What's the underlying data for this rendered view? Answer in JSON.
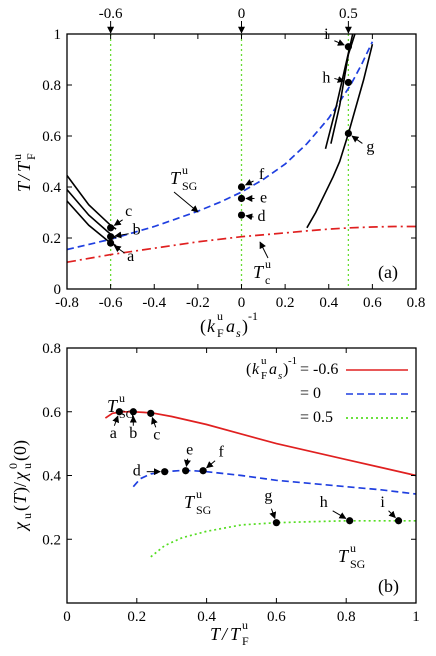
{
  "chart_data": [
    {
      "panel": "(a)",
      "type": "line",
      "xlabel": "(k_F^u a_s)^-1",
      "ylabel": "T/T_F^u",
      "xlim": [
        -0.8,
        0.8
      ],
      "ylim": [
        0,
        1
      ],
      "xticks": [
        "-0.8",
        "-0.6",
        "-0.4",
        "-0.2",
        "0",
        "0.2",
        "0.4",
        "0.6",
        "0.8"
      ],
      "yticks": [
        "0",
        "0.2",
        "0.4",
        "0.6",
        "0.8",
        "1"
      ],
      "top_markers": [
        {
          "x": -0.6,
          "label": "-0.6"
        },
        {
          "x": 0,
          "label": "0"
        },
        {
          "x": 0.49,
          "label": "0.5"
        }
      ],
      "series": [
        {
          "name": "T_SG^u",
          "style": "dashed",
          "color": "#1f3fe0",
          "x": [
            -0.8,
            -0.7,
            -0.6,
            -0.5,
            -0.4,
            -0.3,
            -0.2,
            -0.1,
            0.0,
            0.1,
            0.2,
            0.3,
            0.4,
            0.5,
            0.55,
            0.6
          ],
          "y": [
            0.155,
            0.175,
            0.195,
            0.22,
            0.245,
            0.275,
            0.305,
            0.34,
            0.38,
            0.43,
            0.49,
            0.57,
            0.67,
            0.8,
            0.88,
            0.97
          ]
        },
        {
          "name": "T_c^u",
          "style": "dash-dot",
          "color": "#e02020",
          "x": [
            -0.8,
            -0.6,
            -0.4,
            -0.2,
            0.0,
            0.2,
            0.3,
            0.4,
            0.5,
            0.6,
            0.7,
            0.8
          ],
          "y": [
            0.105,
            0.135,
            0.16,
            0.185,
            0.205,
            0.22,
            0.228,
            0.235,
            0.24,
            0.243,
            0.245,
            0.245
          ]
        },
        {
          "name": "",
          "style": "solid",
          "color": "#000000",
          "x": [
            -0.8,
            -0.7,
            -0.6,
            -0.575
          ],
          "y": [
            0.445,
            0.33,
            0.25,
            0.235
          ]
        },
        {
          "name": "",
          "style": "solid",
          "color": "#000000",
          "x": [
            -0.8,
            -0.7,
            -0.6,
            -0.575
          ],
          "y": [
            0.39,
            0.29,
            0.215,
            0.2
          ]
        },
        {
          "name": "",
          "style": "solid",
          "color": "#000000",
          "x": [
            -0.8,
            -0.7,
            -0.6,
            -0.575
          ],
          "y": [
            0.345,
            0.25,
            0.18,
            0.17
          ]
        },
        {
          "name": "",
          "style": "solid",
          "color": "#000000",
          "x": [
            0.3,
            0.34,
            0.38,
            0.42,
            0.45,
            0.49,
            0.52,
            0.56,
            0.6
          ],
          "y": [
            0.24,
            0.3,
            0.37,
            0.44,
            0.5,
            0.61,
            0.7,
            0.82,
            0.96
          ]
        },
        {
          "name": "",
          "style": "solid",
          "color": "#000000",
          "x": [
            0.385,
            0.43,
            0.47,
            0.51
          ],
          "y": [
            0.55,
            0.7,
            0.85,
            1.0
          ]
        },
        {
          "name": "",
          "style": "solid",
          "color": "#000000",
          "x": [
            0.41,
            0.45,
            0.49,
            0.52
          ],
          "y": [
            0.57,
            0.72,
            0.92,
            1.0
          ]
        }
      ],
      "points": [
        {
          "label": "a",
          "x": -0.6,
          "y": 0.18
        },
        {
          "label": "b",
          "x": -0.6,
          "y": 0.205
        },
        {
          "label": "c",
          "x": -0.6,
          "y": 0.24
        },
        {
          "label": "d",
          "x": 0.0,
          "y": 0.29
        },
        {
          "label": "e",
          "x": 0.0,
          "y": 0.355
        },
        {
          "label": "f",
          "x": 0.0,
          "y": 0.4
        },
        {
          "label": "g",
          "x": 0.49,
          "y": 0.61
        },
        {
          "label": "h",
          "x": 0.49,
          "y": 0.81
        },
        {
          "label": "i",
          "x": 0.49,
          "y": 0.95
        }
      ],
      "curve_labels": [
        "T_SG^u",
        "T_c^u"
      ]
    },
    {
      "panel": "(b)",
      "type": "line",
      "xlabel": "T/T_F^u",
      "ylabel": "χ_u(T)/χ_u^0(0)",
      "xlim": [
        0,
        1
      ],
      "ylim": [
        0,
        0.8
      ],
      "xticks": [
        "0",
        "0.2",
        "0.4",
        "0.6",
        "0.8",
        "1"
      ],
      "yticks": [
        "0.2",
        "0.4",
        "0.6",
        "0.8"
      ],
      "legend_position": "top-right",
      "legend": [
        "(k_F^u a_s)^-1 = -0.6",
        "= 0",
        "= 0.5"
      ],
      "series": [
        {
          "name": "(k_F^u a_s)^-1 = -0.6",
          "style": "solid",
          "color": "#e02020",
          "x": [
            0.11,
            0.13,
            0.16,
            0.19,
            0.22,
            0.25,
            0.3,
            0.4,
            0.5,
            0.6,
            0.7,
            0.8,
            0.9,
            1.0
          ],
          "y": [
            0.58,
            0.595,
            0.6,
            0.6,
            0.598,
            0.595,
            0.585,
            0.56,
            0.53,
            0.5,
            0.475,
            0.45,
            0.425,
            0.4
          ]
        },
        {
          "name": "= 0",
          "style": "dashed",
          "color": "#1f3fe0",
          "x": [
            0.19,
            0.21,
            0.24,
            0.28,
            0.32,
            0.36,
            0.4,
            0.5,
            0.6,
            0.7,
            0.8,
            0.9,
            1.0
          ],
          "y": [
            0.365,
            0.39,
            0.405,
            0.412,
            0.415,
            0.415,
            0.412,
            0.4,
            0.385,
            0.375,
            0.365,
            0.355,
            0.342
          ]
        },
        {
          "name": "= 0.5",
          "style": "dotted",
          "color": "#55dd22",
          "x": [
            0.24,
            0.28,
            0.33,
            0.4,
            0.5,
            0.6,
            0.7,
            0.8,
            0.9,
            1.0
          ],
          "y": [
            0.145,
            0.18,
            0.205,
            0.225,
            0.245,
            0.252,
            0.255,
            0.258,
            0.258,
            0.258
          ]
        }
      ],
      "points": [
        {
          "label": "a",
          "x": 0.15,
          "y": 0.6
        },
        {
          "label": "b",
          "x": 0.19,
          "y": 0.6
        },
        {
          "label": "c",
          "x": 0.24,
          "y": 0.595
        },
        {
          "label": "d",
          "x": 0.28,
          "y": 0.412
        },
        {
          "label": "e",
          "x": 0.34,
          "y": 0.415
        },
        {
          "label": "f",
          "x": 0.39,
          "y": 0.415
        },
        {
          "label": "g",
          "x": 0.6,
          "y": 0.252
        },
        {
          "label": "h",
          "x": 0.81,
          "y": 0.258
        },
        {
          "label": "i",
          "x": 0.95,
          "y": 0.258
        }
      ],
      "curve_labels": [
        "T_SG^u",
        "T_SG^u",
        "T_SG^u"
      ]
    }
  ]
}
